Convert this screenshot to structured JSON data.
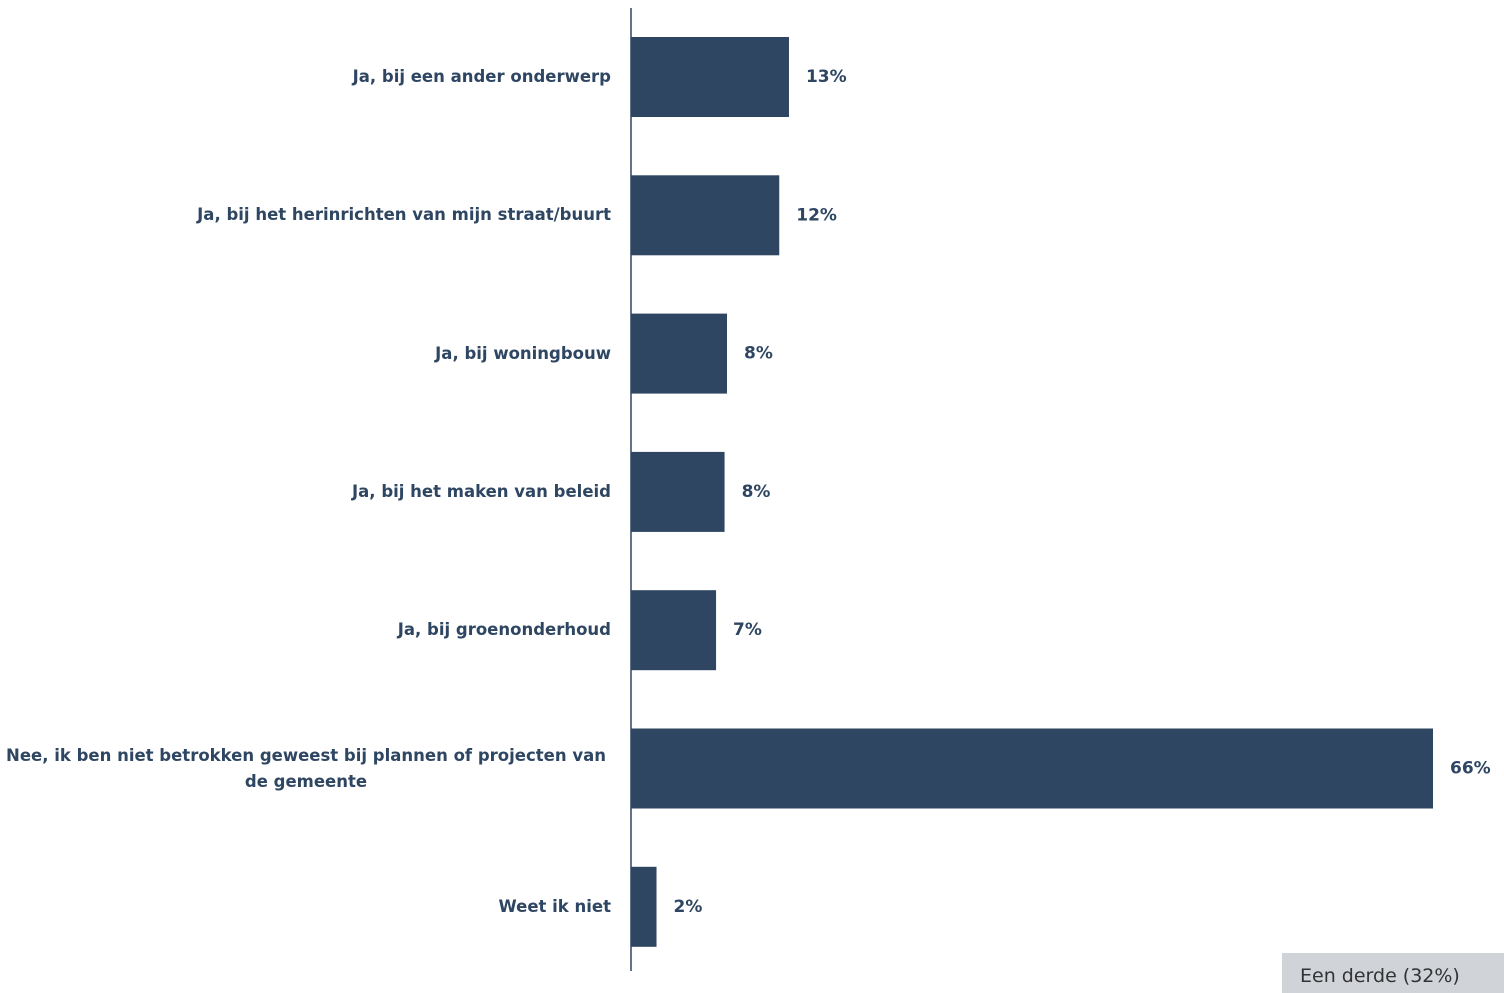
{
  "chart_data": {
    "type": "barh",
    "categories": [
      "Ja, bij een ander onderwerp",
      "Ja, bij het herinrichten van mijn straat/buurt",
      "Ja, bij woningbouw",
      "Ja, bij het maken van beleid",
      "Ja, bij groenonderhoud",
      "Nee, ik ben niet betrokken geweest bij plannen of projecten van de gemeente",
      "Weet ik niet"
    ],
    "values": [
      13.0,
      12.2,
      7.9,
      7.7,
      7.0,
      66,
      2.1
    ],
    "value_labels": [
      "13%",
      "12%",
      "8%",
      "8%",
      "7%",
      "66%",
      "2%"
    ],
    "color": "#2e4662",
    "annotation": "Een derde (32%)"
  }
}
